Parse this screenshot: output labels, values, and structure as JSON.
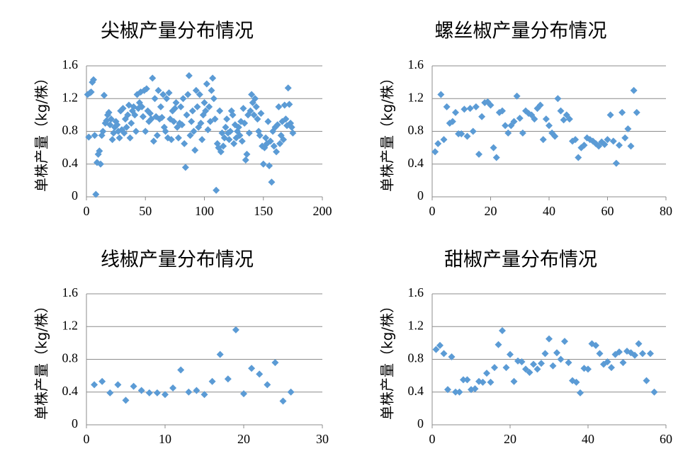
{
  "chart_data": [
    {
      "type": "scatter",
      "title": "尖椒产量分布情况",
      "y_label": "单株产量（kg/株）",
      "color": "#5b9bd5",
      "grid": true,
      "xlim": [
        0,
        200
      ],
      "xticks": [
        0,
        50,
        100,
        150,
        200
      ],
      "ylim": [
        0,
        1.6
      ],
      "yticks": [
        0,
        0.4,
        0.8,
        1.2,
        1.6
      ],
      "x": [
        1,
        2,
        3,
        4,
        5,
        6,
        7,
        8,
        9,
        10,
        11,
        12,
        13,
        14,
        15,
        16,
        17,
        18,
        19,
        20,
        21,
        22,
        23,
        24,
        25,
        26,
        27,
        28,
        29,
        30,
        31,
        32,
        33,
        34,
        35,
        36,
        37,
        38,
        39,
        40,
        41,
        42,
        43,
        44,
        45,
        46,
        47,
        48,
        49,
        50,
        51,
        52,
        53,
        54,
        55,
        56,
        57,
        58,
        59,
        60,
        61,
        62,
        63,
        64,
        65,
        66,
        67,
        68,
        69,
        70,
        71,
        72,
        73,
        74,
        75,
        76,
        77,
        78,
        79,
        80,
        81,
        82,
        83,
        84,
        85,
        86,
        87,
        88,
        89,
        90,
        91,
        92,
        93,
        94,
        95,
        96,
        97,
        98,
        99,
        100,
        101,
        102,
        103,
        104,
        105,
        106,
        107,
        108,
        109,
        110,
        111,
        112,
        113,
        114,
        115,
        116,
        117,
        118,
        119,
        120,
        121,
        122,
        123,
        124,
        125,
        126,
        127,
        128,
        129,
        130,
        131,
        132,
        133,
        134,
        135,
        136,
        137,
        138,
        139,
        140,
        141,
        142,
        143,
        144,
        145,
        146,
        147,
        148,
        149,
        150,
        151,
        152,
        153,
        154,
        155,
        156,
        157,
        158,
        159,
        160,
        161,
        162,
        163,
        164,
        165,
        166,
        167,
        168,
        169,
        170,
        171,
        172,
        173,
        174,
        175
      ],
      "values": [
        1.25,
        0.73,
        1.27,
        1.28,
        1.4,
        1.43,
        0.75,
        0.03,
        0.42,
        0.52,
        0.56,
        0.4,
        0.75,
        0.8,
        1.24,
        0.9,
        0.93,
        1.0,
        1.03,
        0.88,
        0.95,
        0.7,
        0.78,
        0.85,
        0.92,
        0.88,
        0.8,
        0.72,
        1.05,
        0.82,
        1.08,
        0.78,
        0.95,
        0.85,
        1.0,
        1.12,
        0.72,
        0.9,
        1.05,
        1.1,
        1.0,
        0.8,
        1.25,
        1.08,
        1.15,
        1.28,
        1.1,
        0.98,
        1.3,
        0.8,
        1.32,
        1.05,
        0.92,
        1.02,
        0.95,
        1.45,
        0.68,
        1.2,
        0.98,
        0.75,
        1.3,
        0.95,
        1.1,
        0.97,
        1.25,
        0.85,
        0.8,
        1.2,
        0.72,
        1.27,
        0.95,
        0.7,
        1.05,
        0.92,
        1.08,
        1.15,
        0.85,
        0.72,
        0.9,
        1.1,
        0.88,
        1.2,
        0.65,
        0.36,
        1.0,
        1.25,
        1.48,
        0.75,
        0.92,
        1.05,
        0.8,
        0.57,
        1.3,
        1.1,
        0.85,
        1.25,
        0.9,
        0.7,
        1.0,
        1.15,
        1.05,
        1.38,
        0.82,
        1.1,
        0.92,
        1.3,
        1.45,
        1.2,
        0.95,
        0.08,
        0.65,
        0.6,
        1.05,
        0.55,
        0.78,
        0.62,
        0.72,
        0.85,
        0.95,
        0.78,
        0.7,
        0.8,
        1.05,
        1.0,
        0.65,
        0.88,
        0.72,
        0.8,
        0.85,
        0.75,
        0.92,
        0.68,
        1.08,
        0.9,
        0.45,
        0.52,
        1.0,
        0.78,
        1.05,
        1.25,
        1.15,
        1.0,
        1.2,
        1.1,
        0.95,
        0.8,
        0.75,
        1.02,
        0.62,
        0.4,
        0.6,
        0.72,
        0.65,
        0.92,
        0.38,
        0.68,
        0.18,
        0.8,
        0.62,
        0.85,
        0.55,
        0.88,
        1.1,
        0.65,
        0.75,
        0.92,
        0.7,
        1.12,
        0.95,
        0.87,
        1.33,
        1.13,
        0.9,
        0.85,
        0.78
      ]
    },
    {
      "type": "scatter",
      "title": "螺丝椒产量分布情况",
      "y_label": "单株产量（kg/株）",
      "color": "#5b9bd5",
      "grid": true,
      "xlim": [
        0,
        80
      ],
      "xticks": [
        0,
        20,
        40,
        60,
        80
      ],
      "ylim": [
        0,
        1.6
      ],
      "yticks": [
        0,
        0.4,
        0.8,
        1.2,
        1.6
      ],
      "x": [
        1,
        2,
        3,
        4,
        5,
        6,
        7,
        8,
        9,
        10,
        11,
        12,
        13,
        14,
        15,
        16,
        17,
        18,
        19,
        20,
        21,
        22,
        23,
        24,
        25,
        26,
        27,
        28,
        29,
        30,
        31,
        32,
        33,
        34,
        35,
        36,
        37,
        38,
        39,
        40,
        41,
        42,
        43,
        44,
        45,
        46,
        47,
        48,
        49,
        50,
        51,
        52,
        53,
        54,
        55,
        56,
        57,
        58,
        59,
        60,
        61,
        62,
        63,
        64,
        65,
        66,
        67,
        68,
        69,
        70
      ],
      "values": [
        0.55,
        0.65,
        1.25,
        0.7,
        1.1,
        0.9,
        0.92,
        1.03,
        0.77,
        0.77,
        1.07,
        0.74,
        1.08,
        0.8,
        1.1,
        0.52,
        0.98,
        1.15,
        1.16,
        1.12,
        0.6,
        0.48,
        1.03,
        1.05,
        0.87,
        0.78,
        0.87,
        0.92,
        1.23,
        0.96,
        0.78,
        1.05,
        1.02,
        1.0,
        0.95,
        1.08,
        1.12,
        0.7,
        0.95,
        0.87,
        0.78,
        0.74,
        1.2,
        1.05,
        0.94,
        1.0,
        0.95,
        0.68,
        0.7,
        0.48,
        0.6,
        0.63,
        0.72,
        0.7,
        0.68,
        0.65,
        0.62,
        0.67,
        0.64,
        0.7,
        1.0,
        0.68,
        0.41,
        0.63,
        1.03,
        0.72,
        0.83,
        0.62,
        1.3,
        1.03
      ]
    },
    {
      "type": "scatter",
      "title": "线椒产量分布情况",
      "y_label": "单株产量（kg/株）",
      "color": "#5b9bd5",
      "grid": true,
      "xlim": [
        0,
        30
      ],
      "xticks": [
        0,
        10,
        20,
        30
      ],
      "ylim": [
        0,
        1.6
      ],
      "yticks": [
        0,
        0.4,
        0.8,
        1.2,
        1.6
      ],
      "x": [
        1,
        2,
        3,
        4,
        5,
        6,
        7,
        8,
        9,
        10,
        11,
        12,
        13,
        14,
        15,
        16,
        17,
        18,
        19,
        20,
        21,
        22,
        23,
        24,
        25,
        26
      ],
      "values": [
        0.49,
        0.53,
        0.39,
        0.49,
        0.3,
        0.47,
        0.42,
        0.39,
        0.39,
        0.37,
        0.45,
        0.67,
        0.4,
        0.42,
        0.37,
        0.53,
        0.86,
        0.56,
        1.16,
        0.38,
        0.69,
        0.62,
        0.49,
        0.76,
        0.29,
        0.4
      ]
    },
    {
      "type": "scatter",
      "title": "甜椒产量分布情况",
      "y_label": "单株产量（kg/株）",
      "color": "#5b9bd5",
      "grid": true,
      "xlim": [
        0,
        60
      ],
      "xticks": [
        0,
        20,
        40,
        60
      ],
      "ylim": [
        0,
        1.6
      ],
      "yticks": [
        0,
        0.4,
        0.8,
        1.2,
        1.6
      ],
      "x": [
        1,
        2,
        3,
        4,
        5,
        6,
        7,
        8,
        9,
        10,
        11,
        12,
        13,
        14,
        15,
        16,
        17,
        18,
        19,
        20,
        21,
        22,
        23,
        24,
        25,
        26,
        27,
        28,
        29,
        30,
        31,
        32,
        33,
        34,
        35,
        36,
        37,
        38,
        39,
        40,
        41,
        42,
        43,
        44,
        45,
        46,
        47,
        48,
        49,
        50,
        51,
        52,
        53,
        54,
        55,
        56,
        57
      ],
      "values": [
        0.92,
        0.97,
        0.87,
        0.43,
        0.83,
        0.4,
        0.4,
        0.55,
        0.55,
        0.43,
        0.44,
        0.53,
        0.52,
        0.63,
        0.52,
        0.7,
        0.98,
        1.15,
        0.7,
        0.86,
        0.53,
        0.78,
        0.77,
        0.68,
        0.64,
        0.74,
        0.68,
        0.75,
        0.87,
        1.05,
        0.72,
        0.88,
        0.8,
        1.02,
        0.76,
        0.54,
        0.52,
        0.39,
        0.69,
        0.68,
        0.99,
        0.97,
        0.87,
        0.74,
        0.77,
        0.7,
        0.86,
        0.89,
        0.76,
        0.9,
        0.88,
        0.85,
        0.99,
        0.87,
        0.54,
        0.87,
        0.4
      ]
    }
  ]
}
